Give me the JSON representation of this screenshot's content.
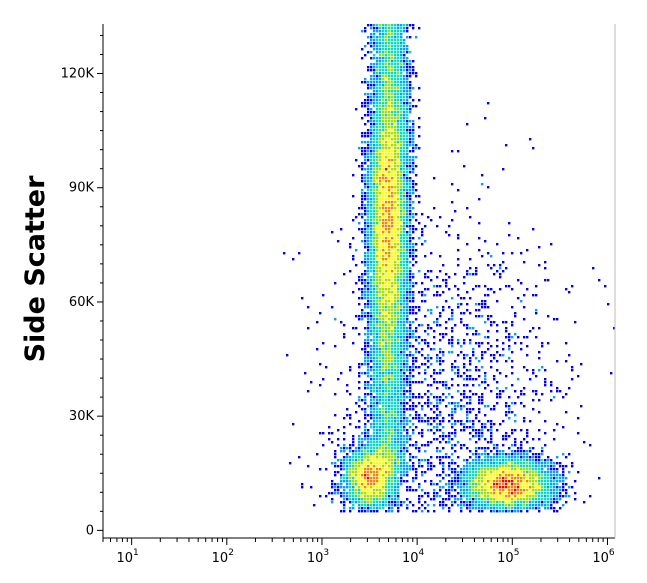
{
  "chart_data": {
    "type": "scatter",
    "style": "density-dot-plot",
    "title": "",
    "xlabel": "",
    "ylabel": "Side Scatter",
    "x_scale": "log",
    "xlim": [
      5,
      1200000
    ],
    "ylim": [
      -2000,
      133000
    ],
    "x_ticks": [
      {
        "value": 10,
        "base": "10",
        "exp": "1"
      },
      {
        "value": 100,
        "base": "10",
        "exp": "2"
      },
      {
        "value": 1000,
        "base": "10",
        "exp": "3"
      },
      {
        "value": 10000,
        "base": "10",
        "exp": "4"
      },
      {
        "value": 100000,
        "base": "10",
        "exp": "5"
      },
      {
        "value": 1000000,
        "base": "10",
        "exp": "6"
      }
    ],
    "y_ticks": [
      {
        "value": 0,
        "label": "0"
      },
      {
        "value": 30000,
        "label": "30K"
      },
      {
        "value": 60000,
        "label": "60K"
      },
      {
        "value": 90000,
        "label": "90K"
      },
      {
        "value": 120000,
        "label": "120K"
      }
    ],
    "grid": false,
    "color_scale": [
      "#0000ff",
      "#00a0ff",
      "#00e0c0",
      "#a0e000",
      "#ffff00",
      "#ff8000",
      "#ff0000"
    ],
    "populations": [
      {
        "name": "column",
        "x_center": 5000,
        "x_spread_decades": 0.1,
        "y_center": 65000,
        "y_spread": 30000,
        "y_min": 15000,
        "y_max": 133000,
        "peak_x": 5000,
        "peak_y": 82000,
        "weight": 0.58
      },
      {
        "name": "low-left",
        "x_center": 3300,
        "x_spread_decades": 0.13,
        "y_center": 14000,
        "y_spread": 4000,
        "peak_x": 3300,
        "peak_y": 14000,
        "weight": 0.14
      },
      {
        "name": "low-right",
        "x_center": 90000,
        "x_spread_decades": 0.22,
        "y_center": 12000,
        "y_spread": 3200,
        "peak_x": 90000,
        "peak_y": 11000,
        "weight": 0.22
      },
      {
        "name": "diffuse",
        "x_center": 20000,
        "x_spread_decades": 0.6,
        "y_center": 30000,
        "y_spread": 25000,
        "peak_x": 20000,
        "peak_y": 30000,
        "weight": 0.06
      }
    ]
  }
}
